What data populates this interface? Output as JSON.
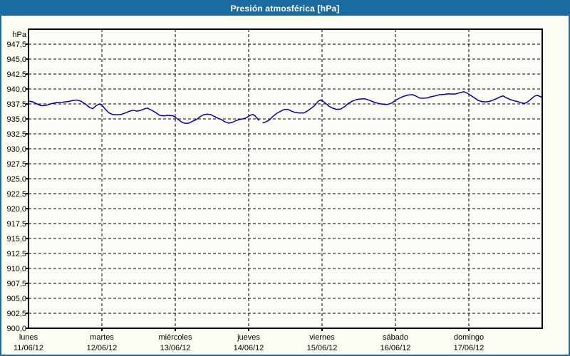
{
  "window": {
    "title": "Presión atmosférica [hPa]",
    "titlebar_color": "#1c6ba0",
    "border_color": "#1c6ba0",
    "background_color": "#fcfcf2"
  },
  "chart_data": {
    "type": "line",
    "title": "Presión atmosférica [hPa]",
    "y_axis_label": "hPa",
    "ylim": [
      900,
      950
    ],
    "y_tick_step": 2.5,
    "y_ticks": [
      {
        "value": 900.0,
        "label": "900,0"
      },
      {
        "value": 902.5,
        "label": "902,5"
      },
      {
        "value": 905.0,
        "label": "905,0"
      },
      {
        "value": 907.5,
        "label": "907,5"
      },
      {
        "value": 910.0,
        "label": "910,0"
      },
      {
        "value": 912.5,
        "label": "912,5"
      },
      {
        "value": 915.0,
        "label": "915,0"
      },
      {
        "value": 917.5,
        "label": "917,5"
      },
      {
        "value": 920.0,
        "label": "920,0"
      },
      {
        "value": 922.5,
        "label": "922,5"
      },
      {
        "value": 925.0,
        "label": "925,0"
      },
      {
        "value": 927.5,
        "label": "927,5"
      },
      {
        "value": 930.0,
        "label": "930,0"
      },
      {
        "value": 932.5,
        "label": "932,5"
      },
      {
        "value": 935.0,
        "label": "935,0"
      },
      {
        "value": 937.5,
        "label": "937,5"
      },
      {
        "value": 940.0,
        "label": "940,0"
      },
      {
        "value": 942.5,
        "label": "942,5"
      },
      {
        "value": 945.0,
        "label": "945,0"
      },
      {
        "value": 947.5,
        "label": "947,5"
      }
    ],
    "x_hours_total": 168,
    "x_days": [
      {
        "name": "lunes",
        "date": "11/06/12"
      },
      {
        "name": "martes",
        "date": "12/06/12"
      },
      {
        "name": "miércoles",
        "date": "13/06/12"
      },
      {
        "name": "jueves",
        "date": "14/06/12"
      },
      {
        "name": "viernes",
        "date": "15/06/12"
      },
      {
        "name": "sábado",
        "date": "16/06/12"
      },
      {
        "name": "domingo",
        "date": "17/06/12"
      }
    ],
    "grid": {
      "horizontal": "dashed",
      "vertical": "dashed at day boundaries",
      "style": "black 4-3 dash"
    },
    "line_color": "#0000bb",
    "series": [
      {
        "name": "Presión atmosférica",
        "unit": "hPa",
        "x_unit": "hours since lunes 11/06/12 00:00",
        "segments": [
          [
            [
              0,
              938.0
            ],
            [
              1.4,
              937.85
            ],
            [
              2.8,
              937.5
            ],
            [
              4.2,
              937.2
            ],
            [
              5.6,
              937.25
            ],
            [
              7.5,
              937.55
            ],
            [
              9.3,
              937.75
            ],
            [
              11.2,
              937.8
            ],
            [
              13,
              937.9
            ],
            [
              14.7,
              938.1
            ],
            [
              15.8,
              938.15
            ],
            [
              17.2,
              937.95
            ],
            [
              18.6,
              937.5
            ],
            [
              20,
              936.9
            ],
            [
              21,
              936.7
            ],
            [
              22.1,
              937.2
            ],
            [
              23.1,
              937.5
            ],
            [
              24,
              937.3
            ],
            [
              25.2,
              936.6
            ],
            [
              26.3,
              936.0
            ],
            [
              27.5,
              935.75
            ],
            [
              28.9,
              935.7
            ],
            [
              30.3,
              935.75
            ],
            [
              31.7,
              936.0
            ],
            [
              33.1,
              936.3
            ],
            [
              34.3,
              936.45
            ],
            [
              35.4,
              936.3
            ],
            [
              36.6,
              936.4
            ],
            [
              38,
              936.7
            ],
            [
              38.9,
              936.8
            ],
            [
              40.1,
              936.5
            ],
            [
              41.5,
              936.1
            ],
            [
              42.9,
              935.6
            ],
            [
              44.3,
              935.5
            ],
            [
              45.4,
              935.6
            ],
            [
              46.6,
              935.55
            ],
            [
              47.3,
              935.5
            ],
            [
              48.2,
              935.2
            ],
            [
              49.2,
              934.8
            ],
            [
              50.3,
              934.4
            ],
            [
              51.3,
              934.25
            ],
            [
              52.4,
              934.3
            ],
            [
              53.6,
              934.6
            ],
            [
              55,
              934.9
            ],
            [
              56.2,
              935.4
            ],
            [
              57.3,
              935.7
            ],
            [
              58.5,
              935.8
            ],
            [
              59.7,
              935.7
            ],
            [
              60.8,
              935.4
            ],
            [
              62,
              935.1
            ],
            [
              63.1,
              934.9
            ],
            [
              64.3,
              934.5
            ],
            [
              65.5,
              934.3
            ],
            [
              66.6,
              934.4
            ],
            [
              67.8,
              934.7
            ],
            [
              69,
              934.9
            ],
            [
              70.1,
              935.0
            ],
            [
              71.3,
              935.2
            ],
            [
              72.5,
              935.6
            ],
            [
              73.4,
              935.75
            ],
            [
              74.1,
              935.5
            ],
            [
              74.8,
              935.1
            ],
            [
              75.3,
              934.8
            ]
          ],
          [
            [
              76.7,
              934.35
            ],
            [
              77.6,
              934.5
            ],
            [
              78.7,
              934.8
            ],
            [
              79.9,
              935.4
            ],
            [
              81.1,
              935.9
            ],
            [
              82.5,
              936.3
            ],
            [
              83.7,
              936.6
            ],
            [
              84.8,
              936.6
            ],
            [
              86,
              936.3
            ],
            [
              87.1,
              936.1
            ],
            [
              88.5,
              936.0
            ],
            [
              90,
              936.0
            ],
            [
              91.1,
              936.3
            ],
            [
              92.5,
              936.8
            ],
            [
              93.7,
              937.3
            ],
            [
              94.8,
              938.0
            ],
            [
              95.5,
              938.15
            ],
            [
              96.2,
              938.0
            ],
            [
              97.2,
              937.6
            ],
            [
              98.3,
              937.1
            ],
            [
              99.5,
              936.8
            ],
            [
              100.7,
              936.6
            ],
            [
              102.1,
              936.65
            ],
            [
              103.5,
              937.1
            ],
            [
              104.6,
              937.6
            ],
            [
              106,
              938.0
            ],
            [
              107.4,
              938.25
            ],
            [
              108.8,
              938.35
            ],
            [
              110.2,
              938.35
            ],
            [
              111.6,
              938.1
            ],
            [
              113,
              937.8
            ],
            [
              114.4,
              937.6
            ],
            [
              115.8,
              937.45
            ],
            [
              117.2,
              937.4
            ],
            [
              118.6,
              937.6
            ],
            [
              120,
              938.1
            ],
            [
              121.4,
              938.5
            ],
            [
              122.8,
              938.8
            ],
            [
              124.2,
              939.0
            ],
            [
              125.6,
              939.05
            ],
            [
              126.8,
              938.8
            ],
            [
              127.9,
              938.5
            ],
            [
              129.1,
              938.45
            ],
            [
              130.3,
              938.5
            ],
            [
              131.6,
              938.7
            ],
            [
              133,
              938.85
            ],
            [
              134.4,
              939.05
            ],
            [
              135.8,
              939.1
            ],
            [
              137.2,
              939.2
            ],
            [
              138.6,
              939.15
            ],
            [
              140,
              939.2
            ],
            [
              141.2,
              939.4
            ],
            [
              142.4,
              939.55
            ],
            [
              143.5,
              939.3
            ],
            [
              144.7,
              938.9
            ],
            [
              145.9,
              938.5
            ],
            [
              147,
              938.1
            ],
            [
              148.2,
              937.9
            ],
            [
              149.4,
              937.85
            ],
            [
              150.5,
              937.9
            ],
            [
              151.7,
              938.1
            ],
            [
              153.1,
              938.4
            ],
            [
              154.3,
              938.7
            ],
            [
              155.2,
              938.85
            ],
            [
              156.4,
              938.5
            ],
            [
              157.5,
              938.25
            ],
            [
              158.7,
              938.05
            ],
            [
              159.9,
              937.9
            ],
            [
              161,
              937.7
            ],
            [
              162.2,
              937.6
            ],
            [
              163.1,
              937.8
            ],
            [
              164.3,
              938.3
            ],
            [
              165.5,
              938.8
            ],
            [
              166.4,
              938.95
            ],
            [
              167.3,
              938.75
            ],
            [
              168,
              938.6
            ]
          ]
        ]
      }
    ]
  }
}
